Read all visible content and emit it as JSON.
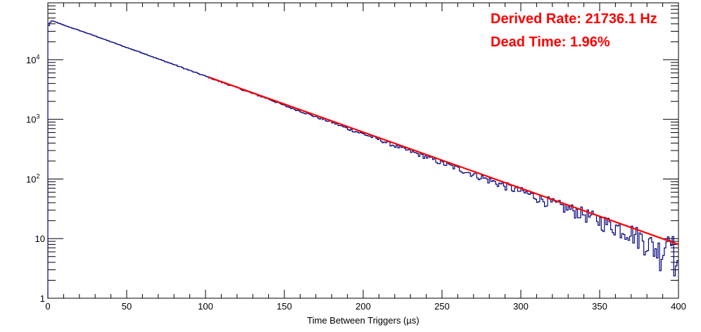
{
  "chart_data": {
    "type": "line",
    "title": "",
    "xlabel": "Time Between Triggers (µs)",
    "ylabel": "",
    "xlim": [
      0,
      400
    ],
    "ylim": [
      1,
      90000
    ],
    "y_scale": "log",
    "grid": false,
    "legend": "none",
    "x_ticks": [
      0,
      50,
      100,
      150,
      200,
      250,
      300,
      350,
      400
    ],
    "x_tick_labels": [
      "0",
      "50",
      "100",
      "150",
      "200",
      "250",
      "300",
      "350",
      "400"
    ],
    "y_ticks": [
      1,
      10,
      100,
      1000,
      10000
    ],
    "y_tick_labels": [
      {
        "base": "1",
        "exp": ""
      },
      {
        "base": "10",
        "exp": ""
      },
      {
        "base": "10",
        "exp": "2"
      },
      {
        "base": "10",
        "exp": "3"
      },
      {
        "base": "10",
        "exp": "4"
      }
    ],
    "series": [
      {
        "style": "histogram",
        "color": "#000080",
        "x": [
          0,
          2,
          5,
          10,
          20,
          30,
          40,
          50,
          60,
          70,
          80,
          90,
          100,
          110,
          120,
          130,
          140,
          150,
          160,
          170,
          180,
          190,
          200,
          210,
          220,
          230,
          240,
          250,
          260,
          270,
          280,
          290,
          300,
          310,
          320,
          330,
          340,
          350,
          360,
          370,
          380,
          385,
          390,
          395,
          398,
          400
        ],
        "y": [
          35000,
          45000,
          43000,
          38000,
          31000,
          25000,
          20000,
          16000,
          13000,
          10300,
          8300,
          6600,
          5300,
          4200,
          3400,
          2700,
          2200,
          1700,
          1380,
          1100,
          900,
          700,
          570,
          460,
          360,
          290,
          235,
          185,
          150,
          120,
          95,
          77,
          62,
          50,
          39,
          32,
          26,
          20,
          16,
          13,
          9,
          7,
          6,
          15,
          4,
          2
        ]
      },
      {
        "style": "fit",
        "color": "#ff0000",
        "x": [
          102,
          400
        ],
        "y": [
          5100,
          8
        ]
      }
    ],
    "annotations": [
      {
        "text": "Derived Rate: 21736.1 Hz",
        "color": "#ff0000"
      },
      {
        "text": "Dead Time: 1.96%",
        "color": "#ff0000"
      }
    ]
  }
}
